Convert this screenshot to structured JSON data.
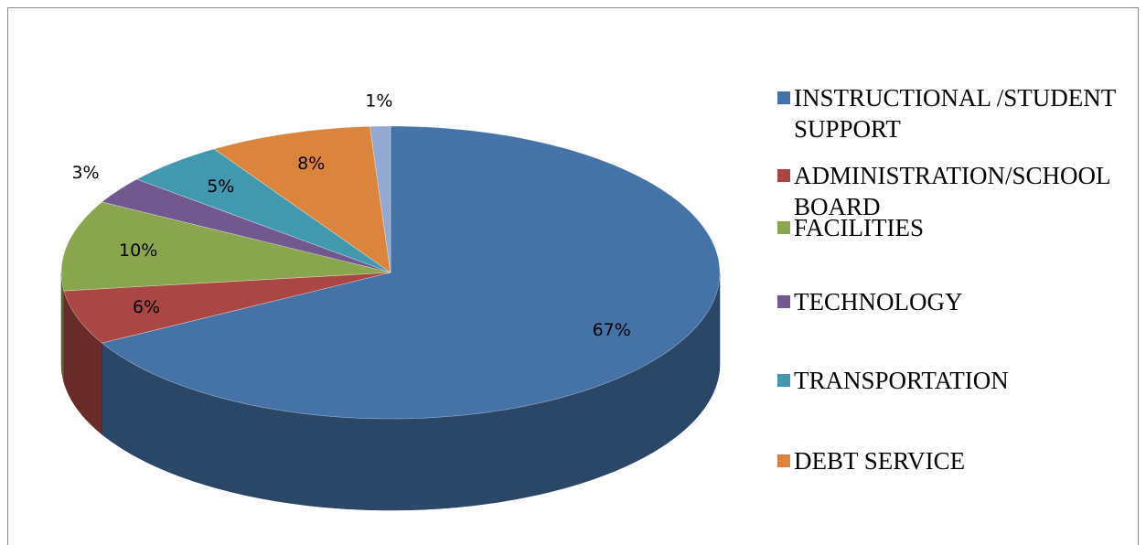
{
  "chart_data": {
    "type": "pie",
    "categories": [
      "INSTRUCTIONAL /STUDENT SUPPORT",
      "ADMINISTRATION/SCHOOL BOARD",
      "FACILITIES",
      "TECHNOLOGY",
      "TRANSPORTATION",
      "DEBT SERVICE",
      null
    ],
    "values": [
      67,
      6,
      10,
      3,
      5,
      8,
      1
    ],
    "value_labels": [
      "67%",
      "6%",
      "10%",
      "3%",
      "5%",
      "8%",
      "1%"
    ],
    "colors": [
      "#4572a7",
      "#aa4643",
      "#89a54e",
      "#71588f",
      "#4198af",
      "#db843d",
      "#93a9cf"
    ],
    "legend": "right"
  }
}
